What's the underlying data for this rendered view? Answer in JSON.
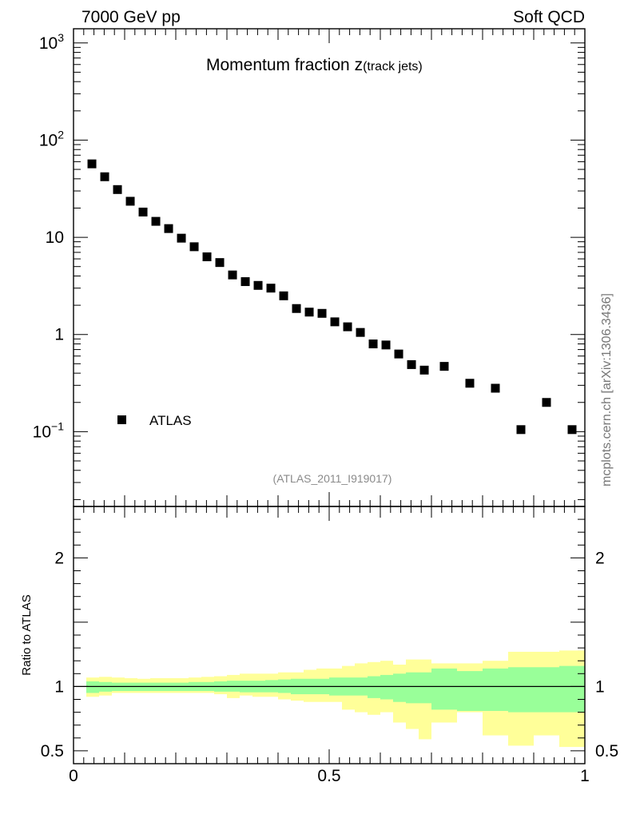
{
  "header": {
    "energy_label": "7000 GeV pp",
    "process_label": "Soft QCD",
    "side_label": "mcplots.cern.ch [arXiv:1306.3436]"
  },
  "chart_data": {
    "type": "scatter",
    "title_main": "Momentum fraction ",
    "title_var": "z",
    "title_sub": "(track jets)",
    "analysis_label": "(ATLAS_2011_I919017)",
    "legend": {
      "label": "ATLAS",
      "placement": "left"
    },
    "y_scale": "log",
    "ylim": [
      0.017,
      1400
    ],
    "xlim": [
      0,
      1
    ],
    "x_tick_labels": [
      "0",
      "0.5",
      "1"
    ],
    "y_tick_labels": [
      {
        "value": 1000,
        "base": "10",
        "exp": "3"
      },
      {
        "value": 100,
        "base": "10",
        "exp": "2"
      },
      {
        "value": 10,
        "base": "10",
        "exp": ""
      },
      {
        "value": 1,
        "base": "1",
        "exp": ""
      },
      {
        "value": 0.1,
        "base": "10",
        "exp": "−1"
      }
    ],
    "series": [
      {
        "name": "ATLAS",
        "x": [
          0.036,
          0.061,
          0.086,
          0.111,
          0.136,
          0.161,
          0.186,
          0.211,
          0.236,
          0.261,
          0.286,
          0.311,
          0.336,
          0.361,
          0.386,
          0.411,
          0.436,
          0.461,
          0.486,
          0.511,
          0.536,
          0.561,
          0.586,
          0.611,
          0.636,
          0.661,
          0.686,
          0.725,
          0.775,
          0.825,
          0.875,
          0.925,
          0.975
        ],
        "values": [
          57,
          42,
          31,
          23.5,
          18.2,
          14.6,
          12.3,
          9.8,
          8.0,
          6.3,
          5.5,
          4.1,
          3.5,
          3.2,
          3.0,
          2.5,
          1.85,
          1.7,
          1.65,
          1.35,
          1.2,
          1.05,
          0.8,
          0.78,
          0.63,
          0.49,
          0.43,
          0.47,
          0.315,
          0.28,
          0.105,
          0.2,
          0.105
        ]
      }
    ],
    "ratio": {
      "ylabel": "Ratio to ATLAS",
      "ylim": [
        0.4,
        2.4
      ],
      "y_tick_labels": [
        {
          "value": 2,
          "label": "2"
        },
        {
          "value": 1,
          "label": "1"
        },
        {
          "value": 0.5,
          "label": "0.5"
        }
      ],
      "bins": [
        {
          "x0": 0.025,
          "x1": 0.05,
          "stat": [
            0.95,
            1.04
          ],
          "total": [
            0.92,
            1.07
          ]
        },
        {
          "x0": 0.05,
          "x1": 0.075,
          "stat": [
            0.96,
            1.035
          ],
          "total": [
            0.93,
            1.075
          ]
        },
        {
          "x0": 0.075,
          "x1": 0.1,
          "stat": [
            0.965,
            1.03
          ],
          "total": [
            0.95,
            1.07
          ]
        },
        {
          "x0": 0.1,
          "x1": 0.125,
          "stat": [
            0.965,
            1.03
          ],
          "total": [
            0.95,
            1.065
          ]
        },
        {
          "x0": 0.125,
          "x1": 0.15,
          "stat": [
            0.965,
            1.03
          ],
          "total": [
            0.95,
            1.06
          ]
        },
        {
          "x0": 0.15,
          "x1": 0.175,
          "stat": [
            0.965,
            1.03
          ],
          "total": [
            0.95,
            1.065
          ]
        },
        {
          "x0": 0.175,
          "x1": 0.2,
          "stat": [
            0.965,
            1.03
          ],
          "total": [
            0.95,
            1.065
          ]
        },
        {
          "x0": 0.2,
          "x1": 0.225,
          "stat": [
            0.965,
            1.03
          ],
          "total": [
            0.95,
            1.065
          ]
        },
        {
          "x0": 0.225,
          "x1": 0.25,
          "stat": [
            0.965,
            1.035
          ],
          "total": [
            0.95,
            1.07
          ]
        },
        {
          "x0": 0.25,
          "x1": 0.275,
          "stat": [
            0.965,
            1.035
          ],
          "total": [
            0.95,
            1.075
          ]
        },
        {
          "x0": 0.275,
          "x1": 0.3,
          "stat": [
            0.96,
            1.04
          ],
          "total": [
            0.94,
            1.08
          ]
        },
        {
          "x0": 0.3,
          "x1": 0.325,
          "stat": [
            0.96,
            1.045
          ],
          "total": [
            0.91,
            1.09
          ]
        },
        {
          "x0": 0.325,
          "x1": 0.35,
          "stat": [
            0.955,
            1.045
          ],
          "total": [
            0.93,
            1.1
          ]
        },
        {
          "x0": 0.35,
          "x1": 0.375,
          "stat": [
            0.955,
            1.045
          ],
          "total": [
            0.92,
            1.1
          ]
        },
        {
          "x0": 0.375,
          "x1": 0.4,
          "stat": [
            0.955,
            1.05
          ],
          "total": [
            0.92,
            1.1
          ]
        },
        {
          "x0": 0.4,
          "x1": 0.425,
          "stat": [
            0.95,
            1.055
          ],
          "total": [
            0.9,
            1.11
          ]
        },
        {
          "x0": 0.425,
          "x1": 0.45,
          "stat": [
            0.94,
            1.06
          ],
          "total": [
            0.89,
            1.11
          ]
        },
        {
          "x0": 0.45,
          "x1": 0.475,
          "stat": [
            0.94,
            1.06
          ],
          "total": [
            0.88,
            1.13
          ]
        },
        {
          "x0": 0.475,
          "x1": 0.5,
          "stat": [
            0.94,
            1.06
          ],
          "total": [
            0.88,
            1.14
          ]
        },
        {
          "x0": 0.5,
          "x1": 0.525,
          "stat": [
            0.93,
            1.07
          ],
          "total": [
            0.88,
            1.14
          ]
        },
        {
          "x0": 0.525,
          "x1": 0.55,
          "stat": [
            0.93,
            1.07
          ],
          "total": [
            0.82,
            1.16
          ]
        },
        {
          "x0": 0.55,
          "x1": 0.575,
          "stat": [
            0.93,
            1.07
          ],
          "total": [
            0.8,
            1.18
          ]
        },
        {
          "x0": 0.575,
          "x1": 0.6,
          "stat": [
            0.91,
            1.08
          ],
          "total": [
            0.78,
            1.19
          ]
        },
        {
          "x0": 0.6,
          "x1": 0.625,
          "stat": [
            0.9,
            1.09
          ],
          "total": [
            0.8,
            1.2
          ]
        },
        {
          "x0": 0.625,
          "x1": 0.65,
          "stat": [
            0.88,
            1.1
          ],
          "total": [
            0.72,
            1.17
          ]
        },
        {
          "x0": 0.65,
          "x1": 0.675,
          "stat": [
            0.87,
            1.11
          ],
          "total": [
            0.67,
            1.21
          ]
        },
        {
          "x0": 0.675,
          "x1": 0.7,
          "stat": [
            0.87,
            1.11
          ],
          "total": [
            0.59,
            1.21
          ]
        },
        {
          "x0": 0.7,
          "x1": 0.75,
          "stat": [
            0.82,
            1.14
          ],
          "total": [
            0.72,
            1.18
          ]
        },
        {
          "x0": 0.75,
          "x1": 0.8,
          "stat": [
            0.81,
            1.12
          ],
          "total": [
            0.8,
            1.18
          ]
        },
        {
          "x0": 0.8,
          "x1": 0.85,
          "stat": [
            0.81,
            1.14
          ],
          "total": [
            0.62,
            1.2
          ]
        },
        {
          "x0": 0.85,
          "x1": 0.9,
          "stat": [
            0.8,
            1.15
          ],
          "total": [
            0.54,
            1.27
          ]
        },
        {
          "x0": 0.9,
          "x1": 0.95,
          "stat": [
            0.8,
            1.15
          ],
          "total": [
            0.62,
            1.27
          ]
        },
        {
          "x0": 0.95,
          "x1": 1.0,
          "stat": [
            0.8,
            1.16
          ],
          "total": [
            0.53,
            1.28
          ]
        }
      ]
    },
    "colors": {
      "data_marker": "#000000",
      "stat_band": "#99ff99",
      "total_band": "#ffff99",
      "analysis_text": "#8a8a8a",
      "side_text": "#777777",
      "axis": "#000000"
    }
  }
}
